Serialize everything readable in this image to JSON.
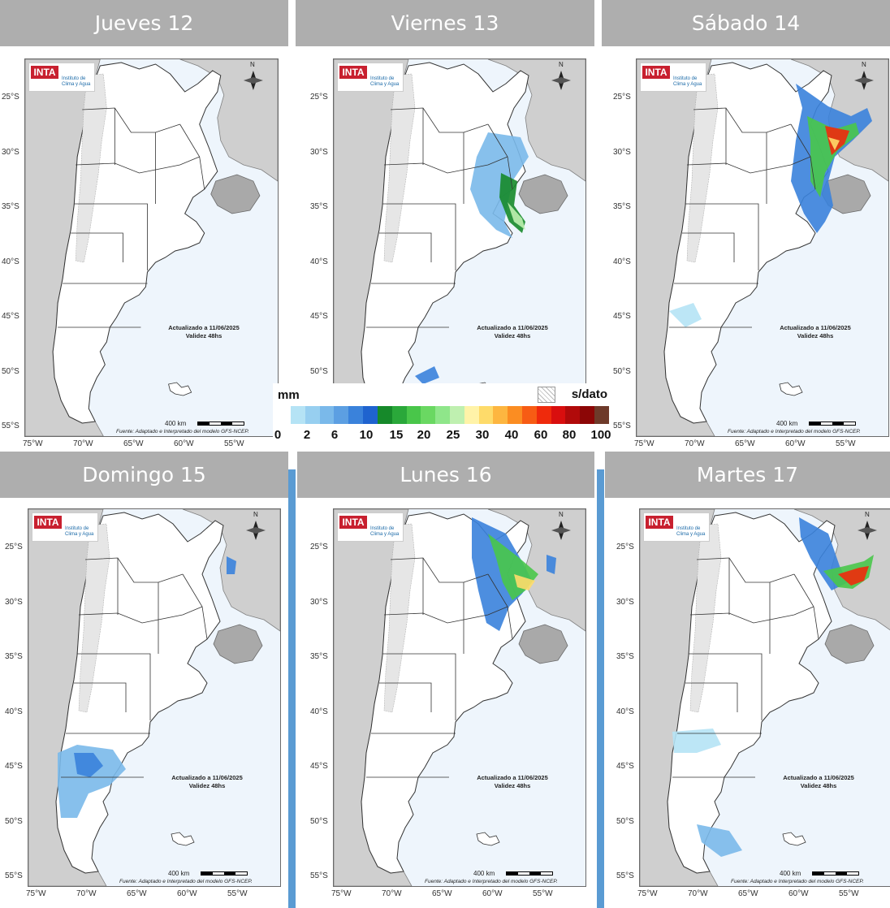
{
  "panels": [
    {
      "title": "Jueves 12"
    },
    {
      "title": "Viernes 13"
    },
    {
      "title": "Sábado 14"
    },
    {
      "title": "Domingo 15"
    },
    {
      "title": "Lunes 16"
    },
    {
      "title": "Martes 17"
    }
  ],
  "map": {
    "lat_labels": [
      "25°S",
      "30°S",
      "35°S",
      "40°S",
      "45°S",
      "50°S",
      "55°S"
    ],
    "lon_labels": [
      "75°W",
      "70°W",
      "65°W",
      "60°W",
      "55°W"
    ],
    "logo_text": "INTA",
    "logo_subtext_1": "Instituto de",
    "logo_subtext_2": "Clima y Agua",
    "north_label": "N",
    "update_line_1": "Actualizado a 11/06/2025",
    "update_line_2": "Validez 48hs",
    "scale_label": "400 km",
    "source_note": "Fuente: Adaptado e Interpretado del modelo GFS-NCEP."
  },
  "legend": {
    "unit": "mm",
    "nodata_label": "s/dato",
    "ticks": [
      "0",
      "2",
      "6",
      "10",
      "15",
      "20",
      "25",
      "30",
      "40",
      "60",
      "80",
      "100"
    ],
    "colors": [
      "#b5e3f5",
      "#97cff0",
      "#7ab9ea",
      "#5c9fe2",
      "#3a82db",
      "#1f63cf",
      "#16892a",
      "#2aa83a",
      "#49c64a",
      "#6ad862",
      "#8fe68a",
      "#bff0b0",
      "#fff3a8",
      "#fedb6a",
      "#fdb640",
      "#fb8d22",
      "#f75c14",
      "#ef2a0c",
      "#d90e0e",
      "#b10a0a",
      "#8c0606",
      "#6e3a2a"
    ]
  }
}
